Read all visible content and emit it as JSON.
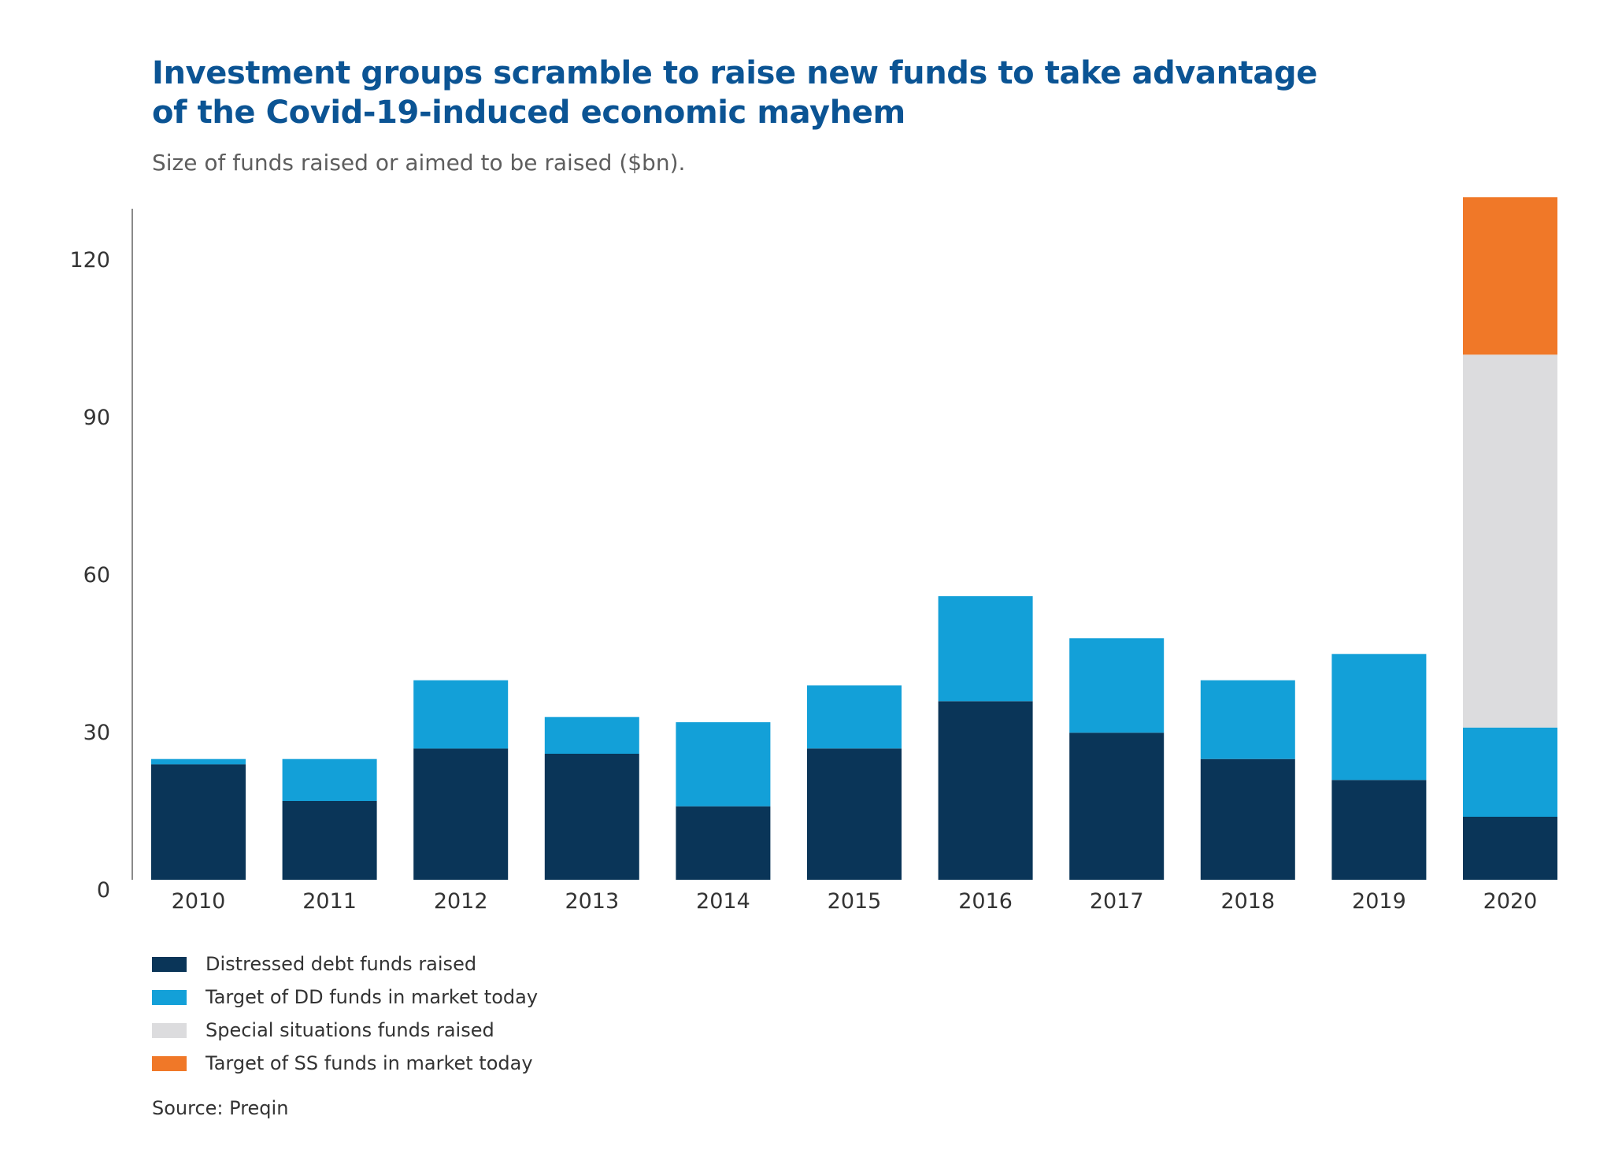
{
  "title": {
    "line1": "Investment groups scramble to raise new funds to take advantage",
    "line2": "of the Covid-19-induced economic mayhem"
  },
  "subtitle": "Size of funds raised or aimed to be raised ($bn).",
  "source": "Source: Preqin",
  "chart_data": {
    "type": "bar",
    "stacked": true,
    "title": "Investment groups scramble to raise new funds to take advantage of the Covid-19-induced economic mayhem",
    "subtitle": "Size of funds raised or aimed to be raised ($bn).",
    "xlabel": "",
    "ylabel": "",
    "ylim": [
      0,
      130
    ],
    "yticks": [
      0,
      30,
      60,
      90,
      120
    ],
    "grid": false,
    "legend_position": "bottom-left",
    "categories": [
      "2010",
      "2011",
      "2012",
      "2013",
      "2014",
      "2015",
      "2016",
      "2017",
      "2018",
      "2019",
      "2020"
    ],
    "series": [
      {
        "name": "Distressed debt funds raised",
        "color": "#0a3558",
        "values": [
          22,
          15,
          25,
          24,
          14,
          25,
          34,
          28,
          23,
          19,
          12
        ]
      },
      {
        "name": "Target of DD funds in market today",
        "color": "#13a0d8",
        "values": [
          1,
          8,
          13,
          7,
          16,
          12,
          20,
          18,
          15,
          24,
          17
        ]
      },
      {
        "name": "Special situations funds raised",
        "color": "#dcdcde",
        "values": [
          0,
          0,
          0,
          0,
          0,
          0,
          0,
          0,
          0,
          0,
          71
        ]
      },
      {
        "name": "Target of SS funds in market today",
        "color": "#f07828",
        "values": [
          0,
          0,
          0,
          0,
          0,
          0,
          0,
          0,
          0,
          0,
          30
        ]
      }
    ]
  }
}
